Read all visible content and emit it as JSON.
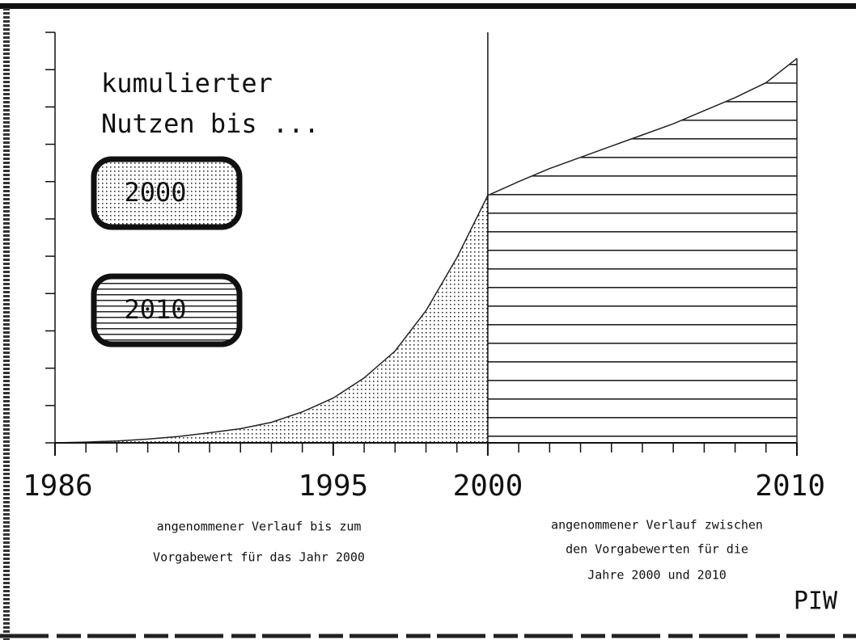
{
  "chart_data": {
    "type": "area",
    "title_lines": [
      "kumulierter",
      "Nutzen bis ..."
    ],
    "series": [
      {
        "name": "2000",
        "pattern": "dots",
        "color": "#222",
        "x": [
          1986,
          1987,
          1988,
          1989,
          1990,
          1991,
          1992,
          1993,
          1994,
          1995,
          1996,
          1997,
          1998,
          1999,
          2000
        ],
        "values": [
          0,
          0.02,
          0.05,
          0.1,
          0.17,
          0.27,
          0.38,
          0.55,
          0.83,
          1.2,
          1.74,
          2.46,
          3.54,
          4.96,
          6.63
        ]
      },
      {
        "name": "2010",
        "pattern": "hlines",
        "color": "#222",
        "x": [
          2000,
          2001,
          2002,
          2003,
          2004,
          2005,
          2006,
          2007,
          2008,
          2009,
          2010
        ],
        "values": [
          6.63,
          7.0,
          7.35,
          7.65,
          7.95,
          8.25,
          8.55,
          8.9,
          9.25,
          9.65,
          10.3
        ]
      }
    ],
    "xlim": [
      1986,
      2010
    ],
    "xticks": [
      1986,
      1995,
      2000,
      2010
    ],
    "xminor_ticks": [
      1987,
      1988,
      1989,
      1990,
      1991,
      1992,
      1993,
      1994,
      1996,
      1997,
      1998,
      1999,
      2001,
      2002,
      2003,
      2004,
      2005,
      2006,
      2007,
      2008,
      2009
    ],
    "ylim": [
      0,
      11
    ],
    "yticks": [
      0,
      1,
      2,
      3,
      4,
      5,
      6,
      7,
      8,
      9,
      10,
      11
    ],
    "divider_x": 2000,
    "captions": {
      "left": [
        "angenommener Verlauf bis zum",
        "Vorgabewert für das Jahr 2000"
      ],
      "right": [
        "angenommener Verlauf zwischen",
        "den Vorgabewerten für die",
        "Jahre 2000 und 2010"
      ]
    },
    "signature": "PIW"
  }
}
